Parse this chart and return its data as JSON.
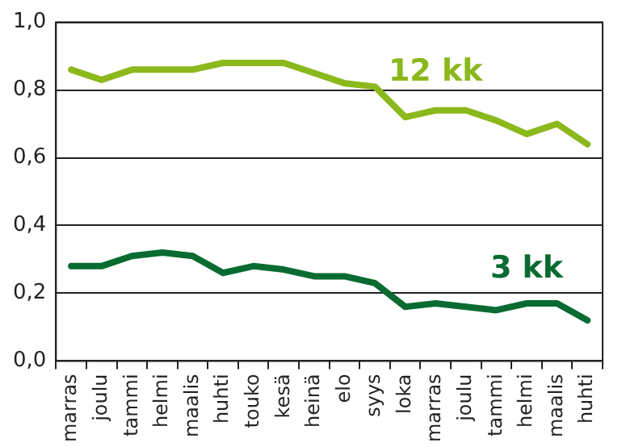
{
  "chart_data": {
    "type": "line",
    "categories": [
      "marras",
      "joulu",
      "tammi",
      "helmi",
      "maalis",
      "huhti",
      "touko",
      "kesä",
      "heinä",
      "elo",
      "syys",
      "loka",
      "marras",
      "joulu",
      "tammi",
      "helmi",
      "maalis",
      "huhti"
    ],
    "series": [
      {
        "name": "12 kk",
        "color": "#8cb81c",
        "values": [
          0.86,
          0.83,
          0.86,
          0.86,
          0.86,
          0.88,
          0.88,
          0.88,
          0.85,
          0.82,
          0.81,
          0.72,
          0.74,
          0.74,
          0.71,
          0.67,
          0.7,
          0.64
        ]
      },
      {
        "name": "3 kk",
        "color": "#0a6b32",
        "values": [
          0.28,
          0.28,
          0.31,
          0.32,
          0.31,
          0.26,
          0.28,
          0.27,
          0.25,
          0.25,
          0.23,
          0.16,
          0.17,
          0.16,
          0.15,
          0.17,
          0.17,
          0.12
        ]
      }
    ],
    "ylim": [
      0,
      1
    ],
    "yticks": [
      {
        "value": 0,
        "label": "0,0"
      },
      {
        "value": 0.2,
        "label": "0,2"
      },
      {
        "value": 0.4,
        "label": "0,4"
      },
      {
        "value": 0.6,
        "label": "0,6"
      },
      {
        "value": 0.8,
        "label": "0,8"
      },
      {
        "value": 1,
        "label": "1,0"
      }
    ],
    "grid": "y",
    "legend": false,
    "marker": "none",
    "line_style": "solid"
  }
}
